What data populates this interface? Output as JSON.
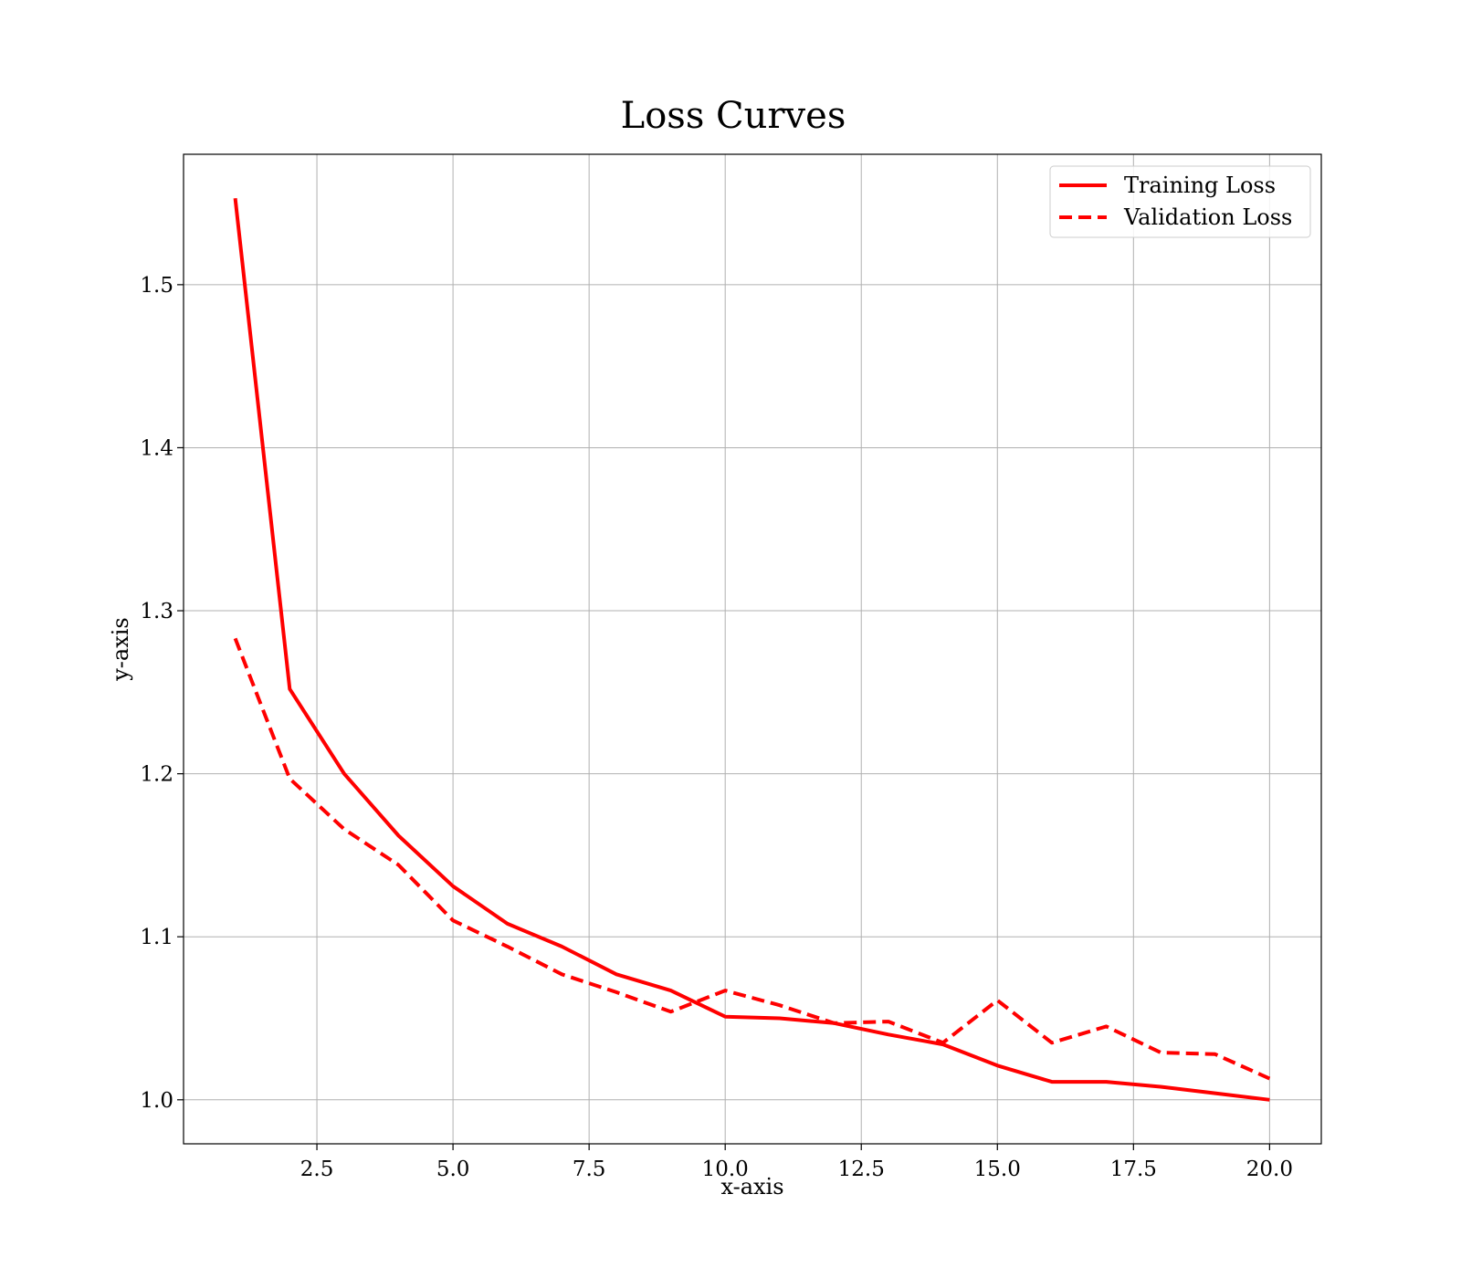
{
  "chart_data": {
    "type": "line",
    "title": "Loss Curves",
    "xlabel": "x-axis",
    "ylabel": "y-axis",
    "xlim": [
      0.05,
      20.95
    ],
    "ylim": [
      0.973,
      1.58
    ],
    "xticks": [
      2.5,
      5.0,
      7.5,
      10.0,
      12.5,
      15.0,
      17.5,
      20.0
    ],
    "xtick_labels": [
      "2.5",
      "5.0",
      "7.5",
      "10.0",
      "12.5",
      "15.0",
      "17.5",
      "20.0"
    ],
    "yticks": [
      1.0,
      1.1,
      1.2,
      1.3,
      1.4,
      1.5
    ],
    "ytick_labels": [
      "1.0",
      "1.1",
      "1.2",
      "1.3",
      "1.4",
      "1.5"
    ],
    "grid": true,
    "legend_position": "top-right",
    "x": [
      1,
      2,
      3,
      4,
      5,
      6,
      7,
      8,
      9,
      10,
      11,
      12,
      13,
      14,
      15,
      16,
      17,
      18,
      19,
      20
    ],
    "series": [
      {
        "name": "Training Loss",
        "style": "solid",
        "color": "#ff0000",
        "values": [
          1.553,
          1.252,
          1.2,
          1.162,
          1.131,
          1.108,
          1.094,
          1.077,
          1.067,
          1.051,
          1.05,
          1.047,
          1.04,
          1.034,
          1.021,
          1.011,
          1.011,
          1.008,
          1.004,
          1.0
        ]
      },
      {
        "name": "Validation Loss",
        "style": "dashed",
        "color": "#ff0000",
        "values": [
          1.283,
          1.197,
          1.166,
          1.144,
          1.11,
          1.094,
          1.077,
          1.066,
          1.054,
          1.067,
          1.058,
          1.047,
          1.048,
          1.035,
          1.061,
          1.035,
          1.045,
          1.029,
          1.028,
          1.013
        ]
      }
    ]
  }
}
